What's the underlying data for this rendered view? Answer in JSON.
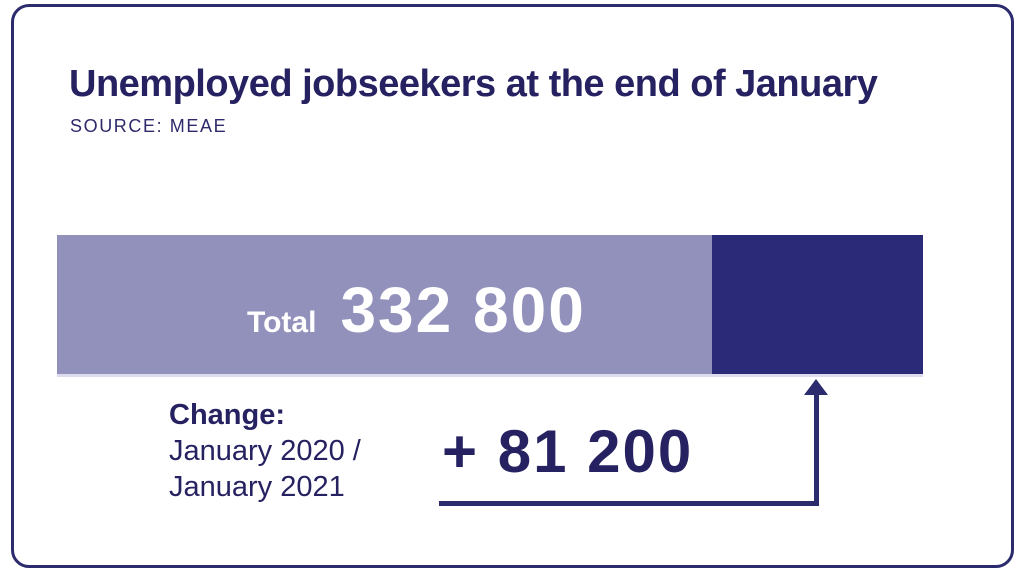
{
  "chart_data": {
    "type": "bar",
    "orientation": "horizontal",
    "title": "Unemployed jobseekers at the end of January",
    "source": "SOURCE: MEAE",
    "bar": {
      "total_label": "Total",
      "total_value_text": "332 800",
      "total_value": 332800,
      "segments": [
        {
          "name": "base-level-january-2020",
          "value": 251600,
          "color": "#9191bb"
        },
        {
          "name": "increase-to-january-2021",
          "value": 81200,
          "color": "#2a2a78"
        }
      ]
    },
    "annotation": {
      "label": "Change:",
      "period_line1": "January 2020 /",
      "period_line2": "January 2021",
      "value_text": "+ 81 200",
      "value": 81200,
      "arrow_points_to": "increase-to-january-2021"
    },
    "colors": {
      "bar_light": "#9191bb",
      "bar_dark": "#2a2a78",
      "text_navy": "#262261",
      "frame_border": "#2b2b6e",
      "bar_text": "#ffffff",
      "background": "#ffffff"
    },
    "legend": "none",
    "axes": "none"
  }
}
